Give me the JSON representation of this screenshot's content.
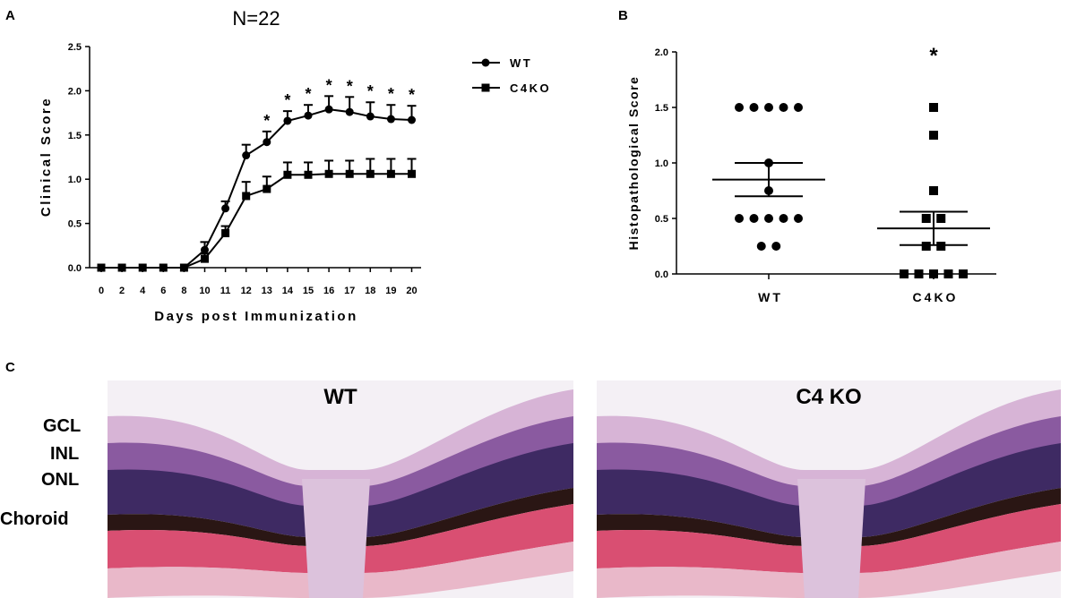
{
  "panels": {
    "a": "A",
    "b": "B",
    "c": "C"
  },
  "chart_data": [
    {
      "type": "line",
      "title": "N=22",
      "xlabel": "Days post Immunization",
      "ylabel": "Clinical Score",
      "x": [
        0,
        2,
        4,
        6,
        8,
        10,
        11,
        12,
        13,
        14,
        15,
        16,
        17,
        18,
        19,
        20
      ],
      "ylim": [
        0,
        2.5
      ],
      "yticks": [
        "0.0",
        "0.5",
        "1.0",
        "1.5",
        "2.0",
        "2.5"
      ],
      "legend_position": "top-right, outside plot",
      "series": [
        {
          "name": "WT",
          "marker": "circle",
          "values": [
            0,
            0,
            0,
            0,
            0,
            0.2,
            0.67,
            1.27,
            1.42,
            1.66,
            1.72,
            1.79,
            1.76,
            1.71,
            1.68,
            1.67
          ],
          "error": [
            0,
            0,
            0,
            0,
            0,
            0.09,
            0.08,
            0.12,
            0.12,
            0.11,
            0.12,
            0.15,
            0.17,
            0.16,
            0.16,
            0.16
          ]
        },
        {
          "name": "C4KO",
          "marker": "square",
          "values": [
            0,
            0,
            0,
            0,
            0,
            0.1,
            0.39,
            0.81,
            0.89,
            1.05,
            1.05,
            1.06,
            1.06,
            1.06,
            1.06,
            1.06
          ],
          "error": [
            0,
            0,
            0,
            0,
            0,
            0.06,
            0.08,
            0.16,
            0.14,
            0.14,
            0.14,
            0.15,
            0.15,
            0.17,
            0.17,
            0.17
          ]
        }
      ],
      "annotations": [
        {
          "x": 13,
          "text": "*"
        },
        {
          "x": 14,
          "text": "*"
        },
        {
          "x": 15,
          "text": "*"
        },
        {
          "x": 16,
          "text": "*"
        },
        {
          "x": 17,
          "text": "*"
        },
        {
          "x": 18,
          "text": "*"
        },
        {
          "x": 19,
          "text": "*"
        },
        {
          "x": 20,
          "text": "*"
        }
      ]
    },
    {
      "type": "scatter",
      "xlabel": "",
      "ylabel": "Histopathological Score",
      "categories": [
        "WT",
        "C4KO"
      ],
      "ylim": [
        0,
        2.0
      ],
      "yticks": [
        "0.0",
        "0.5",
        "1.0",
        "1.5",
        "2.0"
      ],
      "series": [
        {
          "name": "WT",
          "marker": "circle",
          "points": [
            1.5,
            1.5,
            1.5,
            1.5,
            1.5,
            1.0,
            0.75,
            0.5,
            0.5,
            0.5,
            0.5,
            0.5,
            0.25,
            0.25
          ],
          "mean": 0.85,
          "sem": 0.15
        },
        {
          "name": "C4KO",
          "marker": "square",
          "points": [
            1.5,
            1.25,
            0.75,
            0.5,
            0.5,
            0.25,
            0.25,
            0.0,
            0.0,
            0.0,
            0.0,
            0.0
          ],
          "mean": 0.41,
          "sem": 0.15
        }
      ],
      "annotations": [
        {
          "category": "C4KO",
          "text": "*"
        }
      ]
    }
  ],
  "histology": {
    "images": [
      {
        "title": "WT"
      },
      {
        "title": "C4 KO"
      }
    ],
    "layers": [
      "GCL",
      "INL",
      "ONL",
      "Choroid"
    ],
    "colors": {
      "background": "#f4f0f5",
      "gcl": "#d7b4d6",
      "inl": "#8a5aa0",
      "onl": "#3e2a63",
      "rpe": "#2a1614",
      "choroid": "#d94f72",
      "nerve": "#dcc2dc"
    }
  }
}
